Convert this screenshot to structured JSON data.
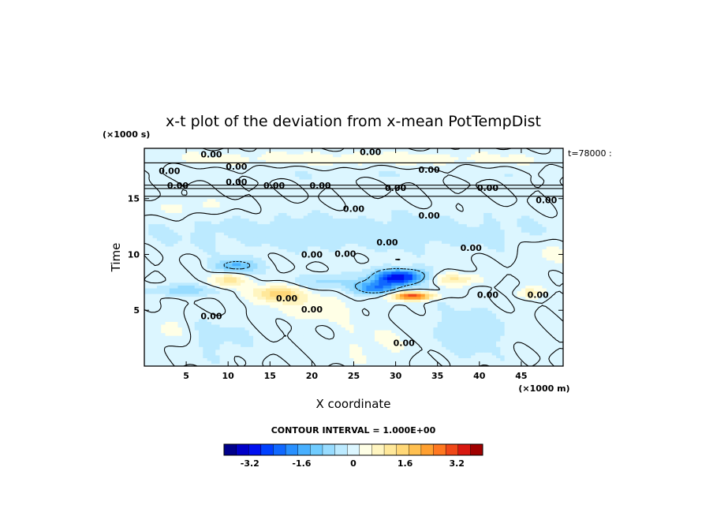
{
  "chart_data": {
    "type": "heatmap",
    "title": "x-t plot of the deviation from x-mean PotTempDist",
    "xlabel": "X coordinate",
    "ylabel": "Time",
    "x_unit": "(×1000 m)",
    "y_unit": "(×1000 s)",
    "time_note": "t=78000 :",
    "xlim": [
      0,
      50
    ],
    "ylim": [
      0,
      19.5
    ],
    "x_ticks": [
      5,
      10,
      15,
      20,
      25,
      30,
      35,
      40,
      45
    ],
    "y_ticks": [
      5,
      10,
      15
    ],
    "contour_interval_label": "CONTOUR INTERVAL = 1.000E+00",
    "contour_labels": [
      "0.00"
    ],
    "colorbar": {
      "range": [
        -4,
        4
      ],
      "tick_values": [
        -3.2,
        -1.6,
        0,
        1.6,
        3.2
      ],
      "tick_labels": [
        "-3.2",
        "-1.6",
        "0",
        "1.6",
        "3.2"
      ],
      "colors": [
        "#00008b",
        "#0000c8",
        "#0010f0",
        "#0040ff",
        "#1068ff",
        "#2890ff",
        "#48b0ff",
        "#70ccff",
        "#98dcff",
        "#bceaff",
        "#dcf6ff",
        "#ffffe6",
        "#fff5c0",
        "#ffe89a",
        "#ffd878",
        "#ffc050",
        "#ffa030",
        "#ff7820",
        "#f04818",
        "#d81810",
        "#a00000"
      ]
    },
    "features": [
      {
        "x": 30.5,
        "y": 8.0,
        "value": -3.2
      },
      {
        "x": 27.5,
        "y": 7.0,
        "value": -2.4
      },
      {
        "x": 11.0,
        "y": 9.0,
        "value": -1.6
      },
      {
        "x": 32.0,
        "y": 6.3,
        "value": 3.2
      },
      {
        "x": 16.0,
        "y": 6.5,
        "value": 1.6
      },
      {
        "x": 10.0,
        "y": 7.7,
        "value": 1.2
      },
      {
        "x": 37.0,
        "y": 7.8,
        "value": 1.0
      },
      {
        "x": 26.0,
        "y": 11.5,
        "value": -0.4
      },
      {
        "x": 20.0,
        "y": 18.4,
        "value": 0.3
      }
    ]
  }
}
